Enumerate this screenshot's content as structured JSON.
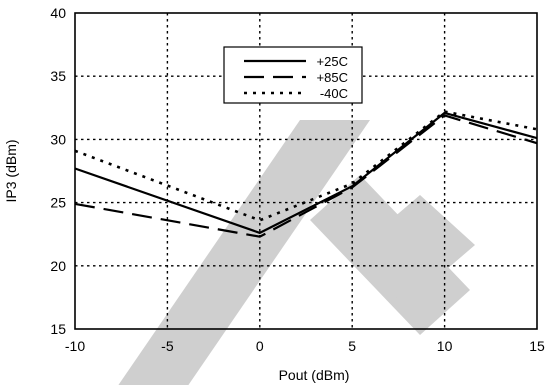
{
  "chart_data": {
    "type": "line",
    "title": "",
    "xlabel": "Pout (dBm)",
    "ylabel": "IP3 (dBm)",
    "xlim": [
      -10,
      15
    ],
    "ylim": [
      15,
      40
    ],
    "xticks": [
      -10,
      -5,
      0,
      5,
      10,
      15
    ],
    "yticks": [
      15,
      20,
      25,
      30,
      35,
      40
    ],
    "xtick_labels": [
      "-10",
      "-5",
      "0",
      "5",
      "10",
      "15"
    ],
    "ytick_labels": [
      "15",
      "20",
      "25",
      "30",
      "35",
      "40"
    ],
    "grid": true,
    "legend_position": "top-center",
    "watermark": "DELETE",
    "series": [
      {
        "name": "+25C",
        "style": "solid",
        "color": "#000000",
        "x": [
          -10,
          0,
          5,
          10,
          15
        ],
        "y": [
          27.7,
          22.6,
          26.3,
          32.1,
          30.1
        ]
      },
      {
        "name": "+85C",
        "style": "dashed",
        "color": "#000000",
        "x": [
          -10,
          0,
          5,
          10,
          15
        ],
        "y": [
          24.9,
          22.3,
          26.2,
          31.9,
          29.7
        ]
      },
      {
        "name": "-40C",
        "style": "dotted",
        "color": "#000000",
        "x": [
          -10,
          0,
          5,
          10,
          15
        ],
        "y": [
          29.1,
          23.6,
          26.5,
          32.2,
          30.8
        ]
      }
    ]
  }
}
